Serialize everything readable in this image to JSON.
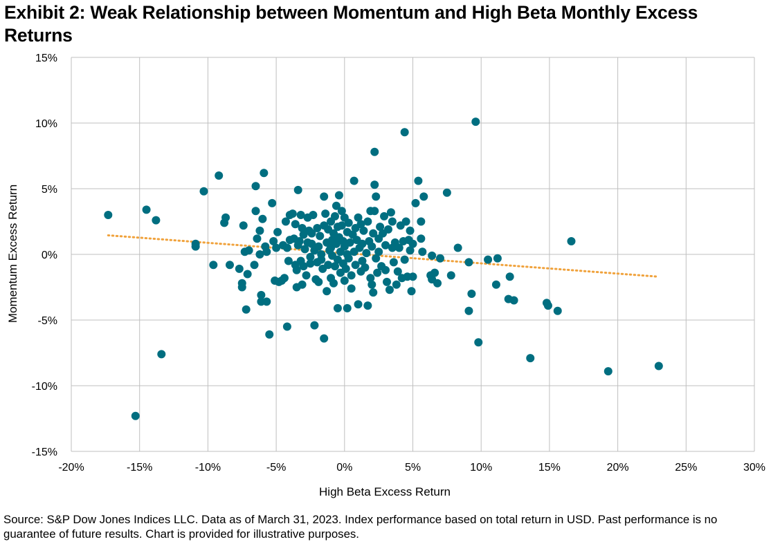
{
  "title": "Exhibit 2: Weak Relationship between Momentum and High Beta Monthly Excess Returns",
  "source": "Source: S&P Dow Jones Indices LLC. Data as of March 31, 2023. Index performance based on total return in USD. Past performance is no guarantee of future results. Chart is provided for illustrative purposes.",
  "chart_data": {
    "type": "scatter",
    "xlabel": "High Beta Excess Return",
    "ylabel": "Momentum Excess Return",
    "xlim": [
      -20,
      30
    ],
    "ylim": [
      -15,
      15
    ],
    "x_ticks": [
      -20,
      -15,
      -10,
      -5,
      0,
      5,
      10,
      15,
      20,
      25,
      30
    ],
    "y_ticks": [
      -15,
      -10,
      -5,
      0,
      5,
      10,
      15
    ],
    "x_tick_labels": [
      "-20%",
      "-15%",
      "-10%",
      "-5%",
      "0%",
      "5%",
      "10%",
      "15%",
      "20%",
      "25%",
      "30%"
    ],
    "y_tick_labels": [
      "-15%",
      "-10%",
      "-5%",
      "0%",
      "5%",
      "10%",
      "15%"
    ],
    "grid": true,
    "legend": false,
    "colors": {
      "points": "#006E80",
      "trendline": "#F0A23C",
      "grid": "#BFBFBF"
    },
    "trendline": {
      "style": "dotted",
      "x": [
        -17.3,
        23.0
      ],
      "y": [
        1.45,
        -1.7
      ]
    },
    "points": [
      [
        -17.3,
        3.0
      ],
      [
        -15.3,
        -12.3
      ],
      [
        -14.5,
        3.4
      ],
      [
        -13.8,
        2.6
      ],
      [
        -13.4,
        -7.6
      ],
      [
        -10.9,
        0.8
      ],
      [
        -10.9,
        0.6
      ],
      [
        -10.3,
        4.8
      ],
      [
        -9.6,
        -0.8
      ],
      [
        -9.2,
        6.0
      ],
      [
        -8.8,
        2.4
      ],
      [
        -8.7,
        2.8
      ],
      [
        -8.4,
        -0.8
      ],
      [
        -7.7,
        -1.1
      ],
      [
        -7.5,
        -2.2
      ],
      [
        -7.5,
        -2.5
      ],
      [
        -7.4,
        2.2
      ],
      [
        -7.3,
        0.2
      ],
      [
        -7.2,
        -4.2
      ],
      [
        -7.1,
        -1.5
      ],
      [
        -7.0,
        0.3
      ],
      [
        -6.6,
        -0.8
      ],
      [
        -6.5,
        5.2
      ],
      [
        -6.5,
        3.3
      ],
      [
        -6.4,
        1.2
      ],
      [
        -6.2,
        1.8
      ],
      [
        -6.2,
        0.0
      ],
      [
        -6.1,
        -3.1
      ],
      [
        -6.1,
        -3.6
      ],
      [
        -6.0,
        2.7
      ],
      [
        -5.9,
        6.2
      ],
      [
        -5.8,
        0.6
      ],
      [
        -5.7,
        0.2
      ],
      [
        -5.7,
        -3.6
      ],
      [
        -5.5,
        -6.1
      ],
      [
        -5.3,
        3.9
      ],
      [
        -5.2,
        1.0
      ],
      [
        -5.1,
        -2.0
      ],
      [
        -5.0,
        0.5
      ],
      [
        -4.9,
        1.7
      ],
      [
        -4.8,
        -2.1
      ],
      [
        -4.6,
        -2.0
      ],
      [
        -4.5,
        0.7
      ],
      [
        -4.4,
        -1.8
      ],
      [
        -4.3,
        2.5
      ],
      [
        -4.2,
        0.5
      ],
      [
        -4.2,
        -5.5
      ],
      [
        -4.1,
        -0.5
      ],
      [
        -4.0,
        3.0
      ],
      [
        -4.0,
        1.1
      ],
      [
        -3.8,
        3.1
      ],
      [
        -3.7,
        1.2
      ],
      [
        -3.6,
        -0.8
      ],
      [
        -3.6,
        2.3
      ],
      [
        -3.5,
        -1.2
      ],
      [
        -3.5,
        -2.5
      ],
      [
        -3.4,
        0.7
      ],
      [
        -3.4,
        4.9
      ],
      [
        -3.3,
        1.0
      ],
      [
        -3.2,
        3.0
      ],
      [
        -3.2,
        -0.5
      ],
      [
        -3.1,
        2.0
      ],
      [
        -3.1,
        -2.3
      ],
      [
        -3.0,
        1.5
      ],
      [
        -3.0,
        -0.9
      ],
      [
        -2.9,
        0.4
      ],
      [
        -2.8,
        -1.6
      ],
      [
        -2.7,
        0.9
      ],
      [
        -2.7,
        2.8
      ],
      [
        -2.6,
        1.8
      ],
      [
        -2.5,
        -0.2
      ],
      [
        -2.5,
        -0.7
      ],
      [
        -2.4,
        1.6
      ],
      [
        -2.4,
        0.8
      ],
      [
        -2.3,
        3.0
      ],
      [
        -2.2,
        -5.4
      ],
      [
        -2.2,
        0.3
      ],
      [
        -2.1,
        -1.9
      ],
      [
        -2.0,
        2.0
      ],
      [
        -2.0,
        -0.6
      ],
      [
        -1.9,
        -2.1
      ],
      [
        -1.9,
        0.6
      ],
      [
        -1.8,
        1.4
      ],
      [
        -1.7,
        0.0
      ],
      [
        -1.7,
        -0.4
      ],
      [
        -1.6,
        -1.1
      ],
      [
        -1.5,
        2.2
      ],
      [
        -1.5,
        4.4
      ],
      [
        -1.5,
        -6.4
      ],
      [
        -1.4,
        3.1
      ],
      [
        -1.3,
        -2.8
      ],
      [
        -1.3,
        0.9
      ],
      [
        -1.2,
        1.9
      ],
      [
        -1.2,
        -0.8
      ],
      [
        -1.1,
        0.3
      ],
      [
        -1.0,
        2.5
      ],
      [
        -1.0,
        -1.8
      ],
      [
        -1.0,
        0.5
      ],
      [
        -0.9,
        -0.1
      ],
      [
        -0.9,
        1.1
      ],
      [
        -0.8,
        -2.2
      ],
      [
        -0.8,
        1.6
      ],
      [
        -0.7,
        2.9
      ],
      [
        -0.7,
        -0.9
      ],
      [
        -0.6,
        3.7
      ],
      [
        -0.6,
        0.8
      ],
      [
        -0.5,
        -4.1
      ],
      [
        -0.5,
        2.1
      ],
      [
        -0.5,
        -0.4
      ],
      [
        -0.4,
        4.5
      ],
      [
        -0.4,
        1.3
      ],
      [
        -0.3,
        -1.4
      ],
      [
        -0.3,
        0.2
      ],
      [
        -0.2,
        3.3
      ],
      [
        -0.2,
        2.2
      ],
      [
        -0.1,
        -0.7
      ],
      [
        -0.1,
        1.0
      ],
      [
        0.0,
        -2.0
      ],
      [
        0.0,
        0.6
      ],
      [
        0.0,
        2.8
      ],
      [
        0.1,
        -1.1
      ],
      [
        0.2,
        -4.1
      ],
      [
        0.2,
        1.7
      ],
      [
        0.2,
        0.0
      ],
      [
        0.3,
        -0.3
      ],
      [
        0.3,
        2.4
      ],
      [
        0.4,
        0.9
      ],
      [
        0.5,
        -1.6
      ],
      [
        0.5,
        -2.6
      ],
      [
        0.6,
        1.5
      ],
      [
        0.7,
        5.6
      ],
      [
        0.7,
        0.2
      ],
      [
        0.8,
        2.0
      ],
      [
        0.8,
        -0.8
      ],
      [
        0.9,
        1.1
      ],
      [
        1.0,
        -3.8
      ],
      [
        1.0,
        2.8
      ],
      [
        1.1,
        0.5
      ],
      [
        1.2,
        -1.3
      ],
      [
        1.2,
        2.3
      ],
      [
        1.3,
        0.8
      ],
      [
        1.3,
        -0.5
      ],
      [
        1.4,
        1.8
      ],
      [
        1.5,
        -1.0
      ],
      [
        1.6,
        0.1
      ],
      [
        1.7,
        -3.9
      ],
      [
        1.7,
        2.5
      ],
      [
        1.8,
        1.0
      ],
      [
        1.9,
        -1.8
      ],
      [
        1.9,
        3.3
      ],
      [
        2.0,
        -2.3
      ],
      [
        2.0,
        0.6
      ],
      [
        2.1,
        -2.9
      ],
      [
        2.1,
        1.6
      ],
      [
        2.2,
        7.8
      ],
      [
        2.2,
        5.3
      ],
      [
        2.2,
        3.3
      ],
      [
        2.3,
        4.4
      ],
      [
        2.3,
        -0.3
      ],
      [
        2.4,
        -1.4
      ],
      [
        2.5,
        1.2
      ],
      [
        2.5,
        0.2
      ],
      [
        2.6,
        2.1
      ],
      [
        2.7,
        -0.9
      ],
      [
        2.8,
        1.6
      ],
      [
        2.9,
        2.9
      ],
      [
        3.0,
        0.7
      ],
      [
        3.0,
        -1.2
      ],
      [
        3.1,
        -2.1
      ],
      [
        3.2,
        1.9
      ],
      [
        3.3,
        -2.7
      ],
      [
        3.4,
        3.2
      ],
      [
        3.5,
        0.5
      ],
      [
        3.5,
        2.5
      ],
      [
        3.6,
        -0.6
      ],
      [
        3.7,
        0.9
      ],
      [
        3.8,
        -2.3
      ],
      [
        3.9,
        -1.3
      ],
      [
        4.0,
        0.5
      ],
      [
        4.1,
        2.2
      ],
      [
        4.2,
        -1.8
      ],
      [
        4.3,
        1.0
      ],
      [
        4.4,
        -0.4
      ],
      [
        4.4,
        9.3
      ],
      [
        4.5,
        2.5
      ],
      [
        4.6,
        -1.7
      ],
      [
        4.7,
        1.1
      ],
      [
        4.8,
        0.3
      ],
      [
        4.8,
        1.8
      ],
      [
        4.9,
        -2.8
      ],
      [
        5.0,
        -1.7
      ],
      [
        5.0,
        0.8
      ],
      [
        5.2,
        3.9
      ],
      [
        5.4,
        5.6
      ],
      [
        5.6,
        2.5
      ],
      [
        5.6,
        1.2
      ],
      [
        5.7,
        0.2
      ],
      [
        5.8,
        4.4
      ],
      [
        6.3,
        -1.6
      ],
      [
        6.4,
        -0.1
      ],
      [
        6.4,
        -1.9
      ],
      [
        6.6,
        -1.4
      ],
      [
        6.8,
        -2.2
      ],
      [
        7.0,
        -0.3
      ],
      [
        7.5,
        4.7
      ],
      [
        7.8,
        -1.6
      ],
      [
        8.3,
        0.5
      ],
      [
        9.1,
        -0.6
      ],
      [
        9.1,
        -4.3
      ],
      [
        9.3,
        -3.0
      ],
      [
        9.6,
        10.1
      ],
      [
        9.8,
        -6.7
      ],
      [
        10.5,
        -0.4
      ],
      [
        11.1,
        -2.3
      ],
      [
        11.2,
        -0.3
      ],
      [
        12.0,
        -3.4
      ],
      [
        12.1,
        -1.7
      ],
      [
        12.4,
        -3.5
      ],
      [
        13.6,
        -7.9
      ],
      [
        14.8,
        -3.7
      ],
      [
        14.9,
        -3.9
      ],
      [
        15.6,
        -4.3
      ],
      [
        16.6,
        1.0
      ],
      [
        19.3,
        -8.9
      ],
      [
        23.0,
        -8.5
      ]
    ]
  }
}
